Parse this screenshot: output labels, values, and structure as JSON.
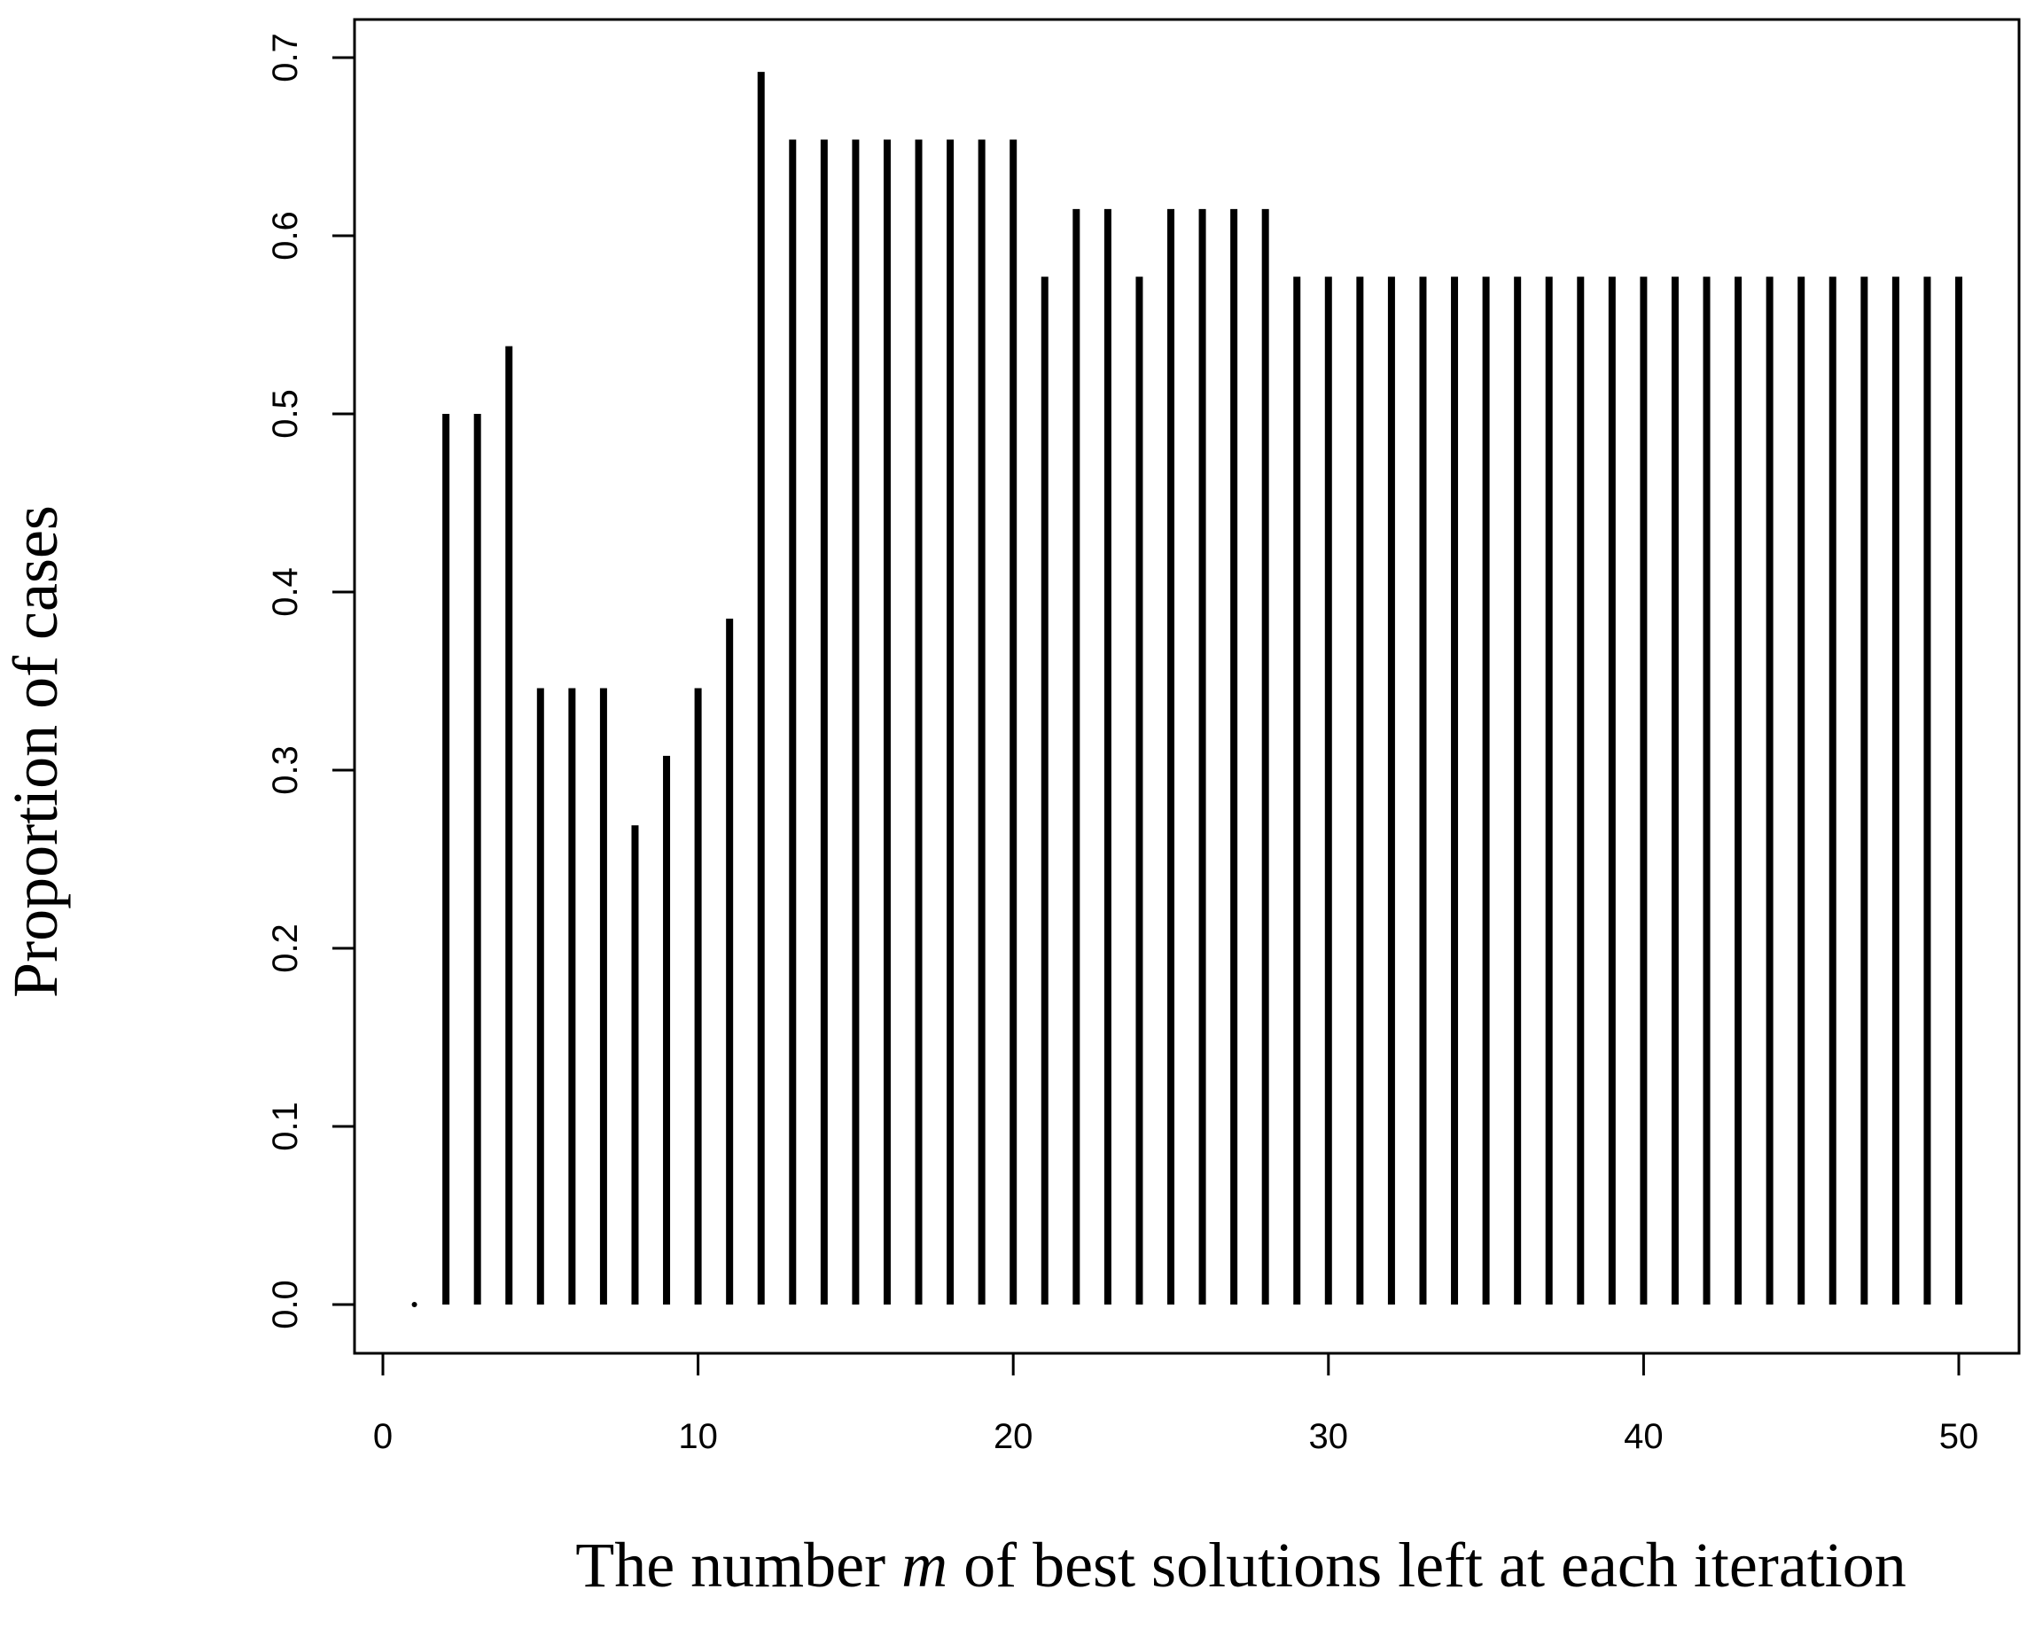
{
  "chart_data": {
    "type": "bar",
    "style": "vertical lines (R type='h')",
    "xlabel_parts": [
      {
        "text": "The number ",
        "italic": false
      },
      {
        "text": "m",
        "italic": true
      },
      {
        "text": " of best solutions left at each iteration",
        "italic": false
      }
    ],
    "ylabel": "Proportion of cases",
    "xlim": [
      0,
      50
    ],
    "ylim": [
      0,
      0.7
    ],
    "xticks": [
      0,
      10,
      20,
      30,
      40,
      50
    ],
    "xtick_labels": [
      "0",
      "10",
      "20",
      "30",
      "40",
      "50"
    ],
    "yticks": [
      0.0,
      0.1,
      0.2,
      0.3,
      0.4,
      0.5,
      0.6,
      0.7
    ],
    "ytick_labels": [
      "0.0",
      "0.1",
      "0.2",
      "0.3",
      "0.4",
      "0.5",
      "0.6",
      "0.7"
    ],
    "grid": false,
    "legend": "none",
    "line_color": "#000000",
    "x": [
      1,
      2,
      3,
      4,
      5,
      6,
      7,
      8,
      9,
      10,
      11,
      12,
      13,
      14,
      15,
      16,
      17,
      18,
      19,
      20,
      21,
      22,
      23,
      24,
      25,
      26,
      27,
      28,
      29,
      30,
      31,
      32,
      33,
      34,
      35,
      36,
      37,
      38,
      39,
      40,
      41,
      42,
      43,
      44,
      45,
      46,
      47,
      48,
      49,
      50
    ],
    "values": [
      0.0,
      0.5,
      0.5,
      0.538,
      0.346,
      0.346,
      0.346,
      0.269,
      0.308,
      0.346,
      0.385,
      0.692,
      0.654,
      0.654,
      0.654,
      0.654,
      0.654,
      0.654,
      0.654,
      0.654,
      0.577,
      0.615,
      0.615,
      0.577,
      0.615,
      0.615,
      0.615,
      0.615,
      0.577,
      0.577,
      0.577,
      0.577,
      0.577,
      0.577,
      0.577,
      0.577,
      0.577,
      0.577,
      0.577,
      0.577,
      0.577,
      0.577,
      0.577,
      0.577,
      0.577,
      0.577,
      0.577,
      0.577,
      0.577,
      0.577
    ]
  }
}
